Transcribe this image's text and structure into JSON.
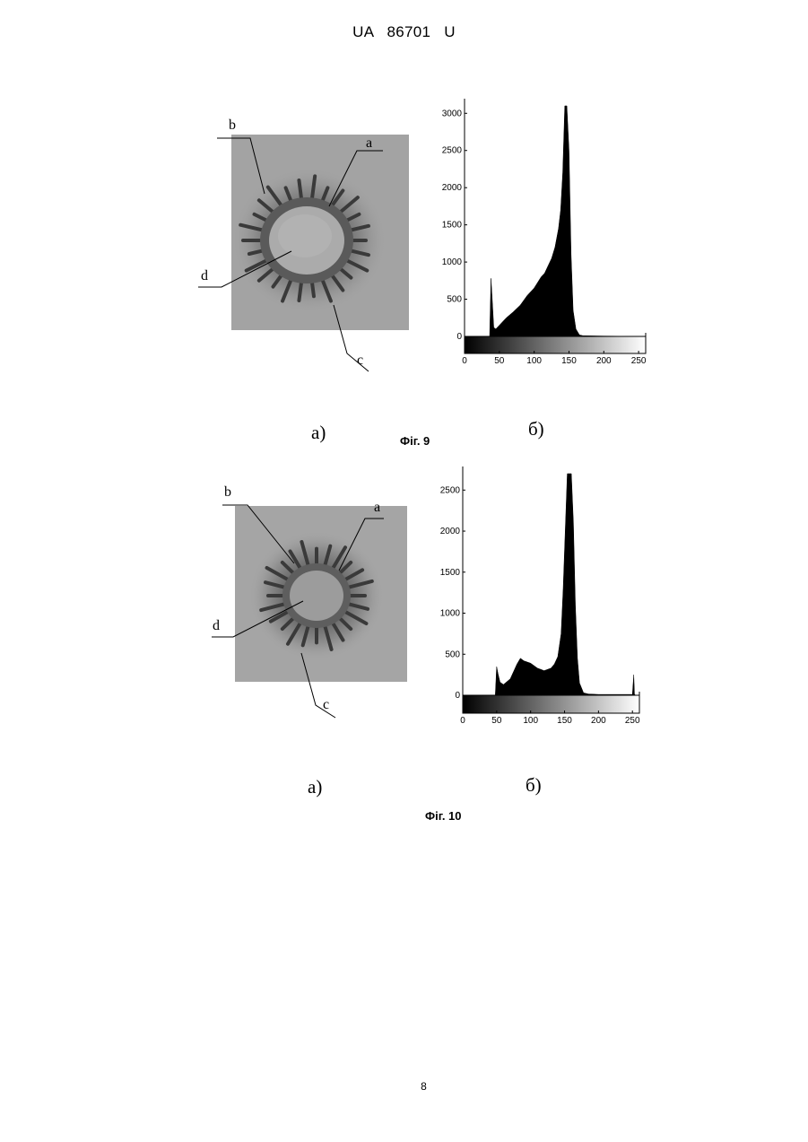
{
  "header": "UA 86701 U",
  "page_number": "8",
  "figures": [
    {
      "caption": "Фіг. 9",
      "sub_a": "а)",
      "sub_b": "б)",
      "labels": {
        "a": "a",
        "b": "b",
        "c": "c",
        "d": "d"
      }
    },
    {
      "caption": "Фіг. 10",
      "sub_a": "а)",
      "sub_b": "б)",
      "labels": {
        "a": "a",
        "b": "b",
        "c": "c",
        "d": "d"
      }
    }
  ],
  "chart_data": [
    {
      "type": "area",
      "xlim": [
        0,
        255
      ],
      "ylim": [
        0,
        3100
      ],
      "x_ticks": [
        0,
        50,
        100,
        150,
        200,
        250
      ],
      "y_ticks": [
        0,
        500,
        1000,
        1500,
        2000,
        2500,
        3000
      ],
      "x": [
        0,
        30,
        36,
        38,
        40,
        42,
        45,
        50,
        60,
        70,
        80,
        90,
        100,
        110,
        115,
        120,
        125,
        130,
        135,
        138,
        141,
        144,
        147,
        150,
        153,
        156,
        160,
        165,
        170,
        200,
        255
      ],
      "values": [
        0,
        0,
        0,
        780,
        450,
        120,
        100,
        150,
        250,
        330,
        420,
        550,
        650,
        800,
        850,
        950,
        1050,
        1200,
        1450,
        1700,
        2200,
        3100,
        3100,
        2500,
        1100,
        350,
        100,
        20,
        10,
        5,
        0
      ]
    },
    {
      "type": "area",
      "xlim": [
        0,
        255
      ],
      "ylim": [
        0,
        2700
      ],
      "x_ticks": [
        0,
        50,
        100,
        150,
        200,
        250
      ],
      "y_ticks": [
        0,
        500,
        1000,
        1500,
        2000,
        2500
      ],
      "x": [
        0,
        45,
        48,
        50,
        52,
        55,
        60,
        70,
        80,
        85,
        90,
        100,
        110,
        120,
        130,
        135,
        140,
        145,
        148,
        151,
        154,
        157,
        160,
        163,
        166,
        169,
        172,
        178,
        185,
        200,
        250,
        252,
        253,
        255
      ],
      "values": [
        0,
        0,
        0,
        350,
        260,
        160,
        130,
        200,
        380,
        450,
        420,
        390,
        330,
        300,
        330,
        380,
        470,
        750,
        1300,
        2000,
        2700,
        2700,
        2700,
        2100,
        1100,
        450,
        150,
        30,
        15,
        10,
        10,
        250,
        10,
        0
      ]
    }
  ]
}
